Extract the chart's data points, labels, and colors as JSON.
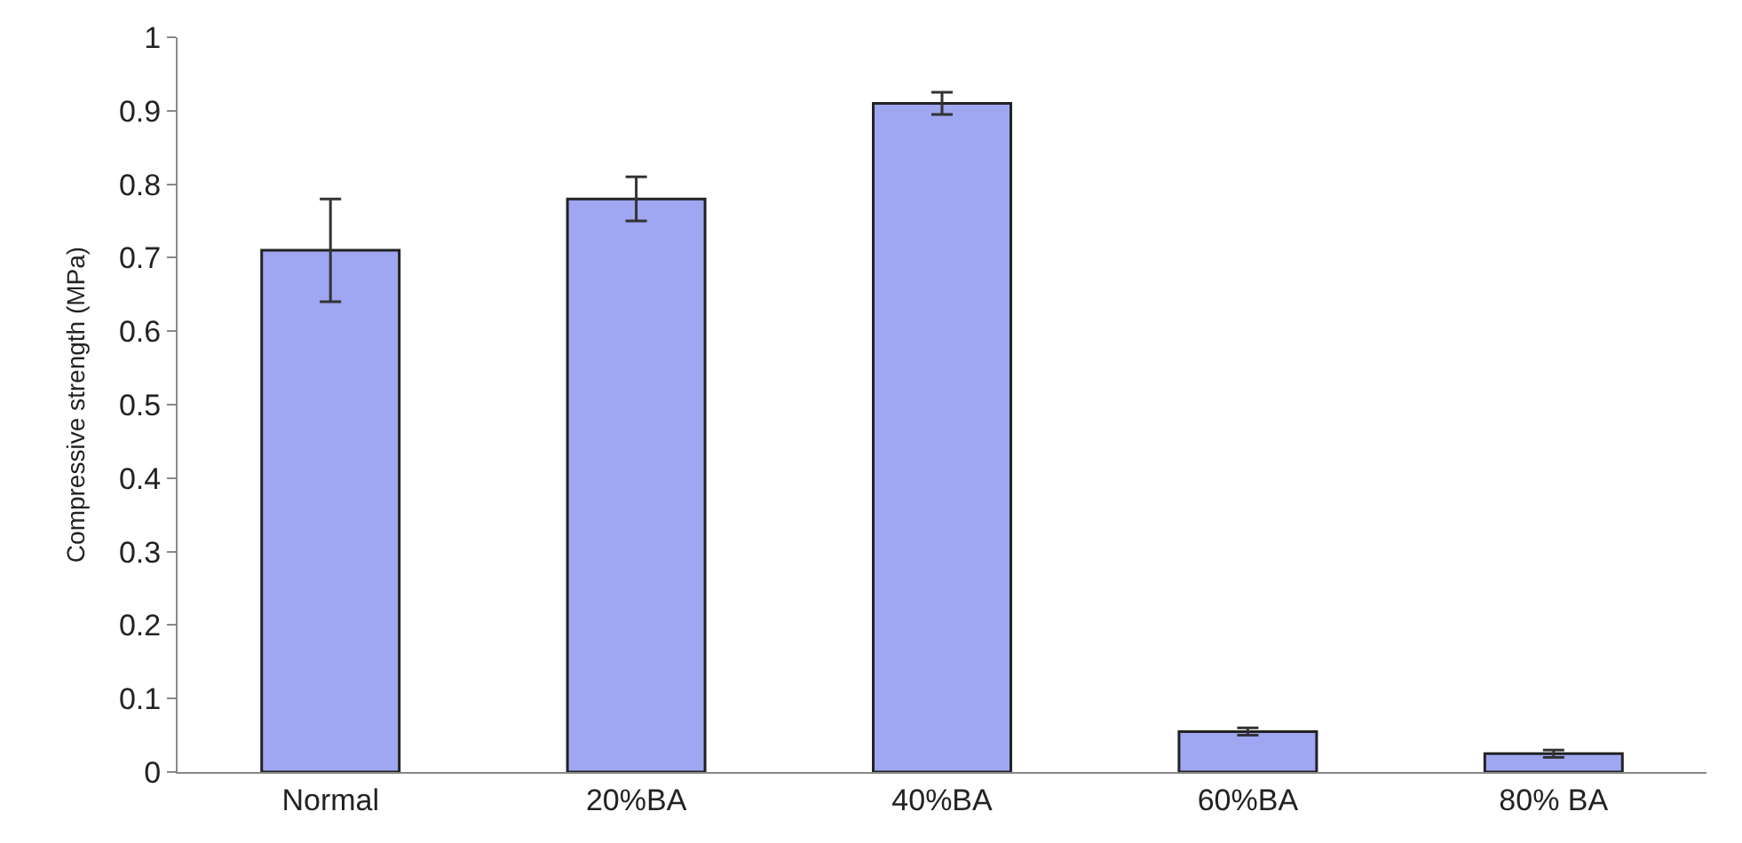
{
  "chart_data": {
    "type": "bar",
    "ylabel": "Compressive strength (MPa)",
    "categories": [
      "Normal",
      "20%BA",
      "40%BA",
      "60%BA",
      "80% BA"
    ],
    "values": [
      0.71,
      0.78,
      0.91,
      0.055,
      0.025
    ],
    "errors": [
      0.07,
      0.03,
      0.015,
      0.005,
      0.005
    ],
    "color": "#9fa6f2",
    "ylim": [
      0,
      1
    ],
    "yticks": [
      0,
      0.1,
      0.2,
      0.3,
      0.4,
      0.5,
      0.6,
      0.7,
      0.8,
      0.9,
      1
    ]
  }
}
